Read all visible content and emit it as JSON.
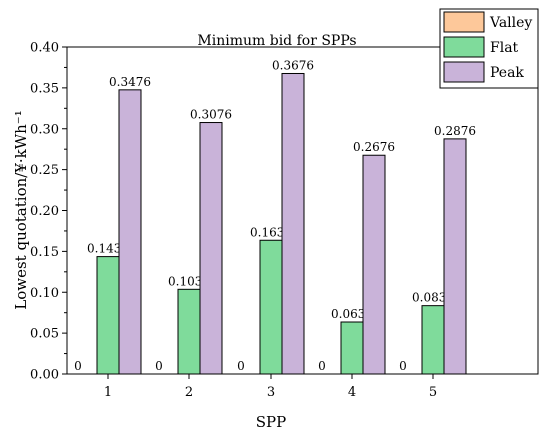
{
  "chart_data": {
    "type": "bar",
    "title": "Minimum bid for SPPs",
    "xlabel": "SPP",
    "ylabel": "Lowest quotation/¥·kWh⁻¹",
    "categories": [
      "1",
      "2",
      "3",
      "4",
      "5"
    ],
    "series": [
      {
        "name": "Valley",
        "color": "#fdc89a",
        "values": [
          0,
          0,
          0,
          0,
          0
        ],
        "labels": [
          "0",
          "0",
          "0",
          "0",
          "0"
        ]
      },
      {
        "name": "Flat",
        "color": "#7fdb9b",
        "values": [
          0.1436,
          0.1036,
          0.1636,
          0.0636,
          0.0836
        ],
        "labels": [
          "0.1436",
          "0.1036",
          "0.1636",
          "0.0636",
          "0.0836"
        ]
      },
      {
        "name": "Peak",
        "color": "#c9b3d9",
        "values": [
          0.3476,
          0.3076,
          0.3676,
          0.2676,
          0.2876
        ],
        "labels": [
          "0.3476",
          "0.3076",
          "0.3676",
          "0.2676",
          "0.2876"
        ]
      }
    ],
    "ylim": [
      0,
      0.4
    ],
    "yticks": [
      "0.00",
      "0.05",
      "0.10",
      "0.15",
      "0.20",
      "0.25",
      "0.30",
      "0.35",
      "0.40"
    ],
    "legend": "top-right",
    "grid": false
  }
}
